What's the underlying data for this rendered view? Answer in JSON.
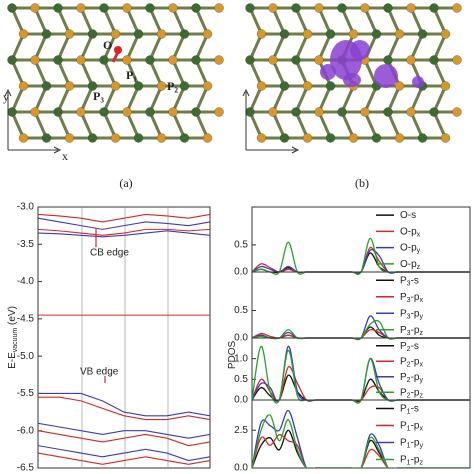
{
  "figure": {
    "panel_a": {
      "label": "(a)",
      "atoms": [
        "O",
        "P₁",
        "P₂",
        "P₃"
      ],
      "axes": {
        "x": "x",
        "y": "y"
      }
    },
    "panel_b": {
      "label": "(b)"
    }
  },
  "chart_data": [
    {
      "type": "line",
      "ylabel": "E-Evacuum (eV)",
      "annotations": [
        "CB edge",
        "VB edge"
      ],
      "x": [
        0,
        1,
        2,
        3,
        4,
        5,
        6,
        7,
        8
      ],
      "xlim": [
        0,
        8
      ],
      "ylim": [
        -6.5,
        -3.0
      ],
      "yticks": [
        {
          "value": -3.0,
          "label": "-3.0"
        },
        -3.5,
        {
          "value": -4.0,
          "label": "-4.0"
        },
        -4.5,
        {
          "value": -5.0,
          "label": "-5.0"
        },
        -5.5,
        {
          "value": -6.0,
          "label": "-6.0"
        },
        -6.5
      ],
      "series": [
        {
          "color": "#d62728",
          "values": [
            -3.1,
            -3.12,
            -3.15,
            -3.2,
            -3.15,
            -3.1,
            -3.12,
            -3.15,
            -3.1
          ]
        },
        {
          "color": "#3b3bb8",
          "values": [
            -3.15,
            -3.2,
            -3.25,
            -3.3,
            -3.25,
            -3.2,
            -3.22,
            -3.25,
            -3.2
          ]
        },
        {
          "color": "#d62728",
          "values": [
            -3.3,
            -3.32,
            -3.35,
            -3.38,
            -3.35,
            -3.3,
            -3.3,
            -3.32,
            -3.3
          ]
        },
        {
          "color": "#3b3bb8",
          "values": [
            -3.35,
            -3.36,
            -3.38,
            -3.4,
            -3.38,
            -3.35,
            -3.32,
            -3.35,
            -3.38
          ]
        },
        {
          "color": "#d62728",
          "values": [
            -4.45,
            -4.45,
            -4.45,
            -4.45,
            -4.45,
            -4.45,
            -4.45,
            -4.45,
            -4.45
          ]
        },
        {
          "color": "#3b3bb8",
          "values": [
            -5.5,
            -5.5,
            -5.5,
            -5.6,
            -5.75,
            -5.8,
            -5.8,
            -5.75,
            -5.8
          ]
        },
        {
          "color": "#d62728",
          "values": [
            -5.55,
            -5.55,
            -5.6,
            -5.7,
            -5.8,
            -5.85,
            -5.85,
            -5.8,
            -5.85
          ]
        },
        {
          "color": "#3b3bb8",
          "values": [
            -5.9,
            -5.95,
            -6.0,
            -6.05,
            -6.0,
            -6.0,
            -6.05,
            -6.1,
            -6.05
          ]
        },
        {
          "color": "#d62728",
          "values": [
            -6.0,
            -6.05,
            -6.1,
            -6.15,
            -6.1,
            -6.05,
            -6.1,
            -6.2,
            -6.15
          ]
        },
        {
          "color": "#3b3bb8",
          "values": [
            -6.2,
            -6.25,
            -6.3,
            -6.35,
            -6.3,
            -6.25,
            -6.3,
            -6.4,
            -6.35
          ]
        },
        {
          "color": "#d62728",
          "values": [
            -6.3,
            -6.35,
            -6.4,
            -6.45,
            -6.4,
            -6.35,
            -6.4,
            -6.45,
            -6.4
          ]
        }
      ]
    },
    {
      "type": "line",
      "ylabel": "PDOS",
      "legend": "upper right",
      "x": [
        0,
        1,
        2,
        3,
        4,
        5,
        6,
        7,
        8,
        9,
        10,
        11,
        12,
        13,
        14,
        15,
        16,
        17,
        18,
        19,
        20,
        21,
        22,
        23,
        24
      ],
      "xlim": [
        0,
        24
      ],
      "ylim": [
        0,
        1.2
      ],
      "yticks": [
        {
          "value": 0,
          "label": "0.0"
        },
        0.5
      ],
      "series": [
        {
          "name": "O-s",
          "color": "#111111",
          "values": [
            0,
            0.05,
            0,
            0,
            0.08,
            0,
            0,
            0,
            0,
            0,
            0,
            0,
            0,
            0.35,
            0.1,
            0,
            0,
            0,
            0,
            0,
            0,
            0,
            0,
            0,
            0
          ]
        },
        {
          "name": "O-px",
          "color": "#d62728",
          "values": [
            0,
            0.15,
            0.08,
            0,
            0.05,
            0,
            0,
            0,
            0,
            0,
            0,
            0,
            0,
            0.45,
            0.2,
            0,
            0,
            0,
            0,
            0,
            0,
            0,
            0,
            0,
            0
          ]
        },
        {
          "name": "O-py",
          "color": "#3b3bb8",
          "values": [
            0,
            0.1,
            0.05,
            0,
            0.1,
            0,
            0,
            0,
            0,
            0,
            0,
            0,
            0,
            0.4,
            0.3,
            0,
            0,
            0,
            0,
            0,
            0,
            0,
            0,
            0,
            0
          ]
        },
        {
          "name": "O-pz",
          "color": "#2ca02c",
          "values": [
            0,
            0.05,
            0,
            0,
            0.55,
            0,
            0,
            0,
            0,
            0,
            0,
            0,
            0,
            0.62,
            0.1,
            0,
            0,
            0,
            0,
            0,
            0,
            0,
            0,
            0,
            0
          ]
        }
      ]
    },
    {
      "type": "line",
      "legend": "upper right",
      "x": [
        0,
        1,
        2,
        3,
        4,
        5,
        6,
        7,
        8,
        9,
        10,
        11,
        12,
        13,
        14,
        15,
        16,
        17,
        18,
        19,
        20,
        21,
        22,
        23,
        24
      ],
      "xlim": [
        0,
        24
      ],
      "ylim": [
        0,
        1.2
      ],
      "yticks": [
        {
          "value": 0,
          "label": "0.0"
        },
        0.5
      ],
      "series": [
        {
          "name": "P3-s",
          "color": "#111111",
          "values": [
            0,
            0.05,
            0,
            0,
            0.05,
            0,
            0,
            0,
            0,
            0,
            0,
            0,
            0,
            0.2,
            0.05,
            0,
            0,
            0,
            0,
            0,
            0,
            0,
            0,
            0,
            0
          ]
        },
        {
          "name": "P3-px",
          "color": "#d62728",
          "values": [
            0,
            0.08,
            0.03,
            0,
            0.05,
            0,
            0,
            0,
            0,
            0,
            0,
            0,
            0,
            0.15,
            0.1,
            0,
            0,
            0,
            0,
            0,
            0,
            0,
            0,
            0,
            0
          ]
        },
        {
          "name": "P3-py",
          "color": "#3b3bb8",
          "values": [
            0,
            0.05,
            0,
            0,
            0.1,
            0,
            0,
            0,
            0,
            0,
            0,
            0,
            0,
            0.4,
            0.15,
            0,
            0,
            0,
            0,
            0,
            0,
            0,
            0,
            0,
            0
          ]
        },
        {
          "name": "P3-pz",
          "color": "#2ca02c",
          "values": [
            0,
            0.03,
            0,
            0,
            0.15,
            0,
            0,
            0,
            0,
            0,
            0,
            0,
            0,
            0.25,
            0.3,
            0,
            0,
            0,
            0,
            0,
            0,
            0,
            0,
            0,
            0
          ]
        }
      ]
    },
    {
      "type": "line",
      "legend": "upper right",
      "x": [
        0,
        1,
        2,
        3,
        4,
        5,
        6,
        7,
        8,
        9,
        10,
        11,
        12,
        13,
        14,
        15,
        16,
        17,
        18,
        19,
        20,
        21,
        22,
        23,
        24
      ],
      "xlim": [
        0,
        24
      ],
      "ylim": [
        0,
        1.5
      ],
      "yticks": [
        {
          "value": 0,
          "label": "0.0"
        },
        0.5,
        {
          "value": 1,
          "label": "1.0"
        }
      ],
      "series": [
        {
          "name": "P2-s",
          "color": "#111111",
          "values": [
            0,
            0.3,
            0.1,
            0,
            0.6,
            0.2,
            0,
            0,
            0,
            0,
            0,
            0,
            0,
            0.5,
            0.2,
            0,
            0,
            0,
            0,
            0,
            0,
            0,
            0,
            0,
            0
          ]
        },
        {
          "name": "P2-px",
          "color": "#d62728",
          "values": [
            0,
            0.5,
            0.2,
            0,
            0.8,
            0.4,
            0,
            0,
            0,
            0,
            0,
            0,
            0,
            0.3,
            0.3,
            0,
            0,
            0,
            0,
            0,
            0,
            0,
            0,
            0,
            0
          ]
        },
        {
          "name": "P2-py",
          "color": "#3b3bb8",
          "values": [
            0,
            0.4,
            0.3,
            0,
            1.3,
            0.2,
            0,
            0,
            0,
            0,
            0,
            0,
            0,
            1.0,
            0.4,
            0,
            0,
            0,
            0,
            0,
            0,
            0,
            0,
            0,
            0
          ]
        },
        {
          "name": "P2-pz",
          "color": "#2ca02c",
          "values": [
            0,
            1.3,
            0.2,
            0,
            1.2,
            0.1,
            0,
            0,
            0,
            0,
            0,
            0,
            0,
            1.0,
            0.2,
            0,
            0,
            0,
            0,
            0,
            0,
            0,
            0,
            0,
            0
          ]
        }
      ]
    },
    {
      "type": "line",
      "legend": "upper right",
      "x": [
        0,
        1,
        2,
        3,
        4,
        5,
        6,
        7,
        8,
        9,
        10,
        11,
        12,
        13,
        14,
        15,
        16,
        17,
        18,
        19,
        20,
        21,
        22,
        23,
        24
      ],
      "xlim": [
        0,
        24
      ],
      "ylim": [
        0,
        4.5
      ],
      "yticks": [
        {
          "value": 0,
          "label": "0.0"
        },
        2.5
      ],
      "series": [
        {
          "name": "P1-s",
          "color": "#111111",
          "values": [
            0,
            1.5,
            2.0,
            1.2,
            2.5,
            1.0,
            0,
            0,
            0,
            0,
            0,
            0,
            0,
            1.8,
            1.0,
            0,
            0,
            0,
            0,
            0,
            0,
            0,
            0,
            0,
            0
          ]
        },
        {
          "name": "P1-px",
          "color": "#d62728",
          "values": [
            0,
            2.0,
            1.5,
            2.2,
            1.8,
            1.5,
            0,
            0,
            0,
            0,
            0,
            0,
            0,
            1.2,
            0.8,
            0,
            0,
            0,
            0,
            0,
            0,
            0,
            0,
            0,
            0
          ]
        },
        {
          "name": "P1-py",
          "color": "#3b3bb8",
          "values": [
            0,
            3.0,
            2.8,
            2.5,
            3.8,
            2.0,
            0,
            0,
            0,
            0,
            0,
            0,
            0,
            2.2,
            1.5,
            0,
            0,
            0,
            0,
            0,
            0,
            0,
            0,
            0,
            0
          ]
        },
        {
          "name": "P1-pz",
          "color": "#2ca02c",
          "values": [
            0,
            2.5,
            3.5,
            1.8,
            3.2,
            1.2,
            0,
            0,
            0,
            0,
            0,
            0,
            0,
            2.0,
            1.2,
            0,
            0,
            0,
            0,
            0,
            0,
            0,
            0,
            0,
            0
          ]
        }
      ]
    }
  ]
}
